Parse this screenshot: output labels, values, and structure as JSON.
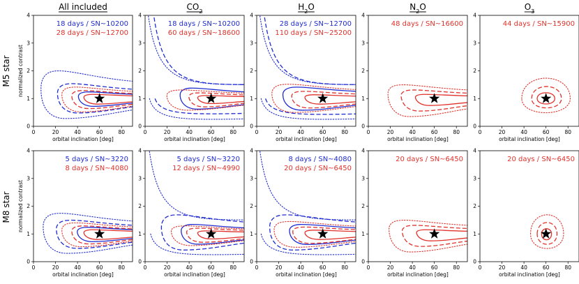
{
  "figure": {
    "row_labels": [
      "M5 star",
      "M8 star"
    ]
  },
  "chart_data": [
    {
      "type": "contour",
      "row": 0,
      "col": 0,
      "title": "All included",
      "title_html": "All included",
      "underline": true,
      "xlabel": "orbital inclination [deg]",
      "ylabel": "normalized contrast",
      "xlim": [
        0,
        90
      ],
      "ylim": [
        0,
        4
      ],
      "xticks": [
        0,
        20,
        40,
        60,
        80
      ],
      "yticks": [
        0,
        1,
        2,
        3,
        4
      ],
      "marker": {
        "x": 60,
        "y": 1
      },
      "annotations": [
        {
          "text": "18 days / SN~10200",
          "color": "#1f2ccf"
        },
        {
          "text": "28 days / SN~12700",
          "color": "#e0322b"
        }
      ],
      "contours": [
        {
          "color": "#1f2ccf",
          "style": "dotted",
          "x_left": 7,
          "y_top": 2.45,
          "y_bottom": 0.28
        },
        {
          "color": "#1f2ccf",
          "style": "dashed",
          "x_left": 22,
          "y_top": 1.78,
          "y_bottom": 0.48
        },
        {
          "color": "#1f2ccf",
          "style": "solid",
          "x_left": 41,
          "y_top": 1.35,
          "y_bottom": 0.72
        },
        {
          "color": "#e0322b",
          "style": "dotted",
          "x_left": 26,
          "y_top": 1.6,
          "y_bottom": 0.52
        },
        {
          "color": "#e0322b",
          "style": "dashed",
          "x_left": 35,
          "y_top": 1.42,
          "y_bottom": 0.64
        },
        {
          "color": "#e0322b",
          "style": "solid",
          "x_left": 46,
          "y_top": 1.22,
          "y_bottom": 0.8
        }
      ]
    },
    {
      "type": "contour",
      "row": 0,
      "col": 1,
      "title": "CO2",
      "title_html": "CO<tspan baseline-shift='sub' font-size='8'>2</tspan>",
      "underline": true,
      "xlabel": "orbital inclination [deg]",
      "ylabel": "",
      "xlim": [
        0,
        90
      ],
      "ylim": [
        0,
        4
      ],
      "xticks": [
        0,
        20,
        40,
        60,
        80
      ],
      "yticks": [
        0,
        1,
        2,
        3,
        4
      ],
      "marker": {
        "x": 60,
        "y": 1
      },
      "annotations": [
        {
          "text": "18 days / SN~10200",
          "color": "#1f2ccf"
        },
        {
          "text": "60 days / SN~18600",
          "color": "#e0322b"
        }
      ],
      "contours": [
        {
          "color": "#1f2ccf",
          "style": "dotted",
          "x_left": 1,
          "y_top": 4.6,
          "y_bottom": 0.22,
          "shape": "open"
        },
        {
          "color": "#1f2ccf",
          "style": "dashed",
          "x_left": 6,
          "y_top": 4.6,
          "y_bottom": 0.42,
          "shape": "open"
        },
        {
          "color": "#1f2ccf",
          "style": "solid",
          "x_left": 32,
          "y_top": 1.55,
          "y_bottom": 0.62
        },
        {
          "color": "#e0322b",
          "style": "dotted",
          "x_left": 20,
          "y_top": 1.45,
          "y_bottom": 0.58
        },
        {
          "color": "#e0322b",
          "style": "dashed",
          "x_left": 40,
          "y_top": 1.3,
          "y_bottom": 0.7
        },
        {
          "color": "#e0322b",
          "style": "solid",
          "x_left": 48,
          "y_top": 1.16,
          "y_bottom": 0.82
        }
      ]
    },
    {
      "type": "contour",
      "row": 0,
      "col": 2,
      "title": "H2O",
      "title_html": "H<tspan baseline-shift='sub' font-size='8'>2</tspan>O",
      "underline": true,
      "xlabel": "orbital inclination [deg]",
      "ylabel": "",
      "xlim": [
        0,
        90
      ],
      "ylim": [
        0,
        4
      ],
      "xticks": [
        0,
        20,
        40,
        60,
        80
      ],
      "yticks": [
        0,
        1,
        2,
        3,
        4
      ],
      "marker": {
        "x": 60,
        "y": 1
      },
      "annotations": [
        {
          "text": "28 days / SN~12700",
          "color": "#1f2ccf"
        },
        {
          "text": "110 days / SN~25200",
          "color": "#e0322b"
        }
      ],
      "contours": [
        {
          "color": "#1f2ccf",
          "style": "dotted",
          "x_left": 1,
          "y_top": 4.6,
          "y_bottom": 0.22,
          "shape": "open"
        },
        {
          "color": "#1f2ccf",
          "style": "dashed",
          "x_left": 5,
          "y_top": 4.6,
          "y_bottom": 0.4,
          "shape": "open"
        },
        {
          "color": "#1f2ccf",
          "style": "solid",
          "x_left": 24,
          "y_top": 1.6,
          "y_bottom": 0.58
        },
        {
          "color": "#e0322b",
          "style": "dotted",
          "x_left": 14,
          "y_top": 1.75,
          "y_bottom": 0.5
        },
        {
          "color": "#e0322b",
          "style": "dashed",
          "x_left": 32,
          "y_top": 1.38,
          "y_bottom": 0.66
        },
        {
          "color": "#e0322b",
          "style": "solid",
          "x_left": 44,
          "y_top": 1.2,
          "y_bottom": 0.8
        }
      ]
    },
    {
      "type": "contour",
      "row": 0,
      "col": 3,
      "title": "N2O",
      "title_html": "N<tspan baseline-shift='sub' font-size='8'>2</tspan>O",
      "underline": true,
      "xlabel": "orbital inclination [deg]",
      "ylabel": "",
      "xlim": [
        0,
        90
      ],
      "ylim": [
        0,
        4
      ],
      "xticks": [
        0,
        20,
        40,
        60,
        80
      ],
      "yticks": [
        0,
        1,
        2,
        3,
        4
      ],
      "marker": {
        "x": 60,
        "y": 1
      },
      "annotations": [
        {
          "text": "48 days / SN~16600",
          "color": "#e0322b"
        }
      ],
      "contours": [
        {
          "color": "#e0322b",
          "style": "dotted",
          "x_left": 18,
          "y_top": 1.72,
          "y_bottom": 0.35
        },
        {
          "color": "#e0322b",
          "style": "dashed",
          "x_left": 30,
          "y_top": 1.45,
          "y_bottom": 0.55
        },
        {
          "color": "#e0322b",
          "style": "solid",
          "x_left": 43,
          "y_top": 1.22,
          "y_bottom": 0.75
        }
      ]
    },
    {
      "type": "contour",
      "row": 0,
      "col": 4,
      "title": "O3",
      "title_html": "O<tspan baseline-shift='sub' font-size='8'>3</tspan>",
      "underline": true,
      "xlabel": "orbital inclination [deg]",
      "ylabel": "",
      "xlim": [
        0,
        90
      ],
      "ylim": [
        0,
        4
      ],
      "xticks": [
        0,
        20,
        40,
        60,
        80
      ],
      "yticks": [
        0,
        1,
        2,
        3,
        4
      ],
      "marker": {
        "x": 60,
        "y": 1
      },
      "annotations": [
        {
          "text": "44 days / SN~15900",
          "color": "#e0322b"
        }
      ],
      "contours": [
        {
          "color": "#e0322b",
          "style": "dotted",
          "x_left": 38,
          "y_top": 1.98,
          "y_bottom": 0.32,
          "shape": "blob",
          "x_right": 82
        },
        {
          "color": "#e0322b",
          "style": "dashed",
          "x_left": 47,
          "y_top": 1.58,
          "y_bottom": 0.55,
          "shape": "blob",
          "x_right": 74
        },
        {
          "color": "#e0322b",
          "style": "solid",
          "x_left": 52,
          "y_top": 1.28,
          "y_bottom": 0.74,
          "shape": "blob",
          "x_right": 68
        }
      ]
    },
    {
      "type": "contour",
      "row": 1,
      "col": 0,
      "title": "",
      "title_html": "",
      "underline": false,
      "xlabel": "orbital inclination [deg]",
      "ylabel": "normalized contrast",
      "xlim": [
        0,
        90
      ],
      "ylim": [
        0,
        4
      ],
      "xticks": [
        0,
        20,
        40,
        60,
        80
      ],
      "yticks": [
        0,
        1,
        2,
        3,
        4
      ],
      "marker": {
        "x": 60,
        "y": 1
      },
      "annotations": [
        {
          "text": "5 days / SN~3220",
          "color": "#1f2ccf"
        },
        {
          "text": "8 days / SN~4080",
          "color": "#e0322b"
        }
      ],
      "contours": [
        {
          "color": "#1f2ccf",
          "style": "dotted",
          "x_left": 9,
          "y_top": 2.08,
          "y_bottom": 0.3
        },
        {
          "color": "#1f2ccf",
          "style": "dashed",
          "x_left": 21,
          "y_top": 1.72,
          "y_bottom": 0.48
        },
        {
          "color": "#1f2ccf",
          "style": "solid",
          "x_left": 40,
          "y_top": 1.35,
          "y_bottom": 0.72
        },
        {
          "color": "#e0322b",
          "style": "dotted",
          "x_left": 26,
          "y_top": 1.58,
          "y_bottom": 0.54
        },
        {
          "color": "#e0322b",
          "style": "dashed",
          "x_left": 35,
          "y_top": 1.42,
          "y_bottom": 0.64
        },
        {
          "color": "#e0322b",
          "style": "solid",
          "x_left": 46,
          "y_top": 1.22,
          "y_bottom": 0.8
        }
      ]
    },
    {
      "type": "contour",
      "row": 1,
      "col": 1,
      "title": "",
      "title_html": "",
      "underline": false,
      "xlabel": "orbital inclination [deg]",
      "ylabel": "",
      "xlim": [
        0,
        90
      ],
      "ylim": [
        0,
        4
      ],
      "xticks": [
        0,
        20,
        40,
        60,
        80
      ],
      "yticks": [
        0,
        1,
        2,
        3,
        4
      ],
      "marker": {
        "x": 60,
        "y": 1
      },
      "annotations": [
        {
          "text": "5 days / SN~3220",
          "color": "#1f2ccf"
        },
        {
          "text": "12 days / SN~4990",
          "color": "#e0322b"
        }
      ],
      "contours": [
        {
          "color": "#1f2ccf",
          "style": "dotted",
          "x_left": 2,
          "y_top": 4.6,
          "y_bottom": 0.22,
          "shape": "open"
        },
        {
          "color": "#1f2ccf",
          "style": "dashed",
          "x_left": 15,
          "y_top": 2.0,
          "y_bottom": 0.42
        },
        {
          "color": "#1f2ccf",
          "style": "solid",
          "x_left": 33,
          "y_top": 1.5,
          "y_bottom": 0.63
        },
        {
          "color": "#e0322b",
          "style": "dotted",
          "x_left": 24,
          "y_top": 1.42,
          "y_bottom": 0.58
        },
        {
          "color": "#e0322b",
          "style": "dashed",
          "x_left": 38,
          "y_top": 1.3,
          "y_bottom": 0.7
        },
        {
          "color": "#e0322b",
          "style": "solid",
          "x_left": 48,
          "y_top": 1.16,
          "y_bottom": 0.82
        }
      ]
    },
    {
      "type": "contour",
      "row": 1,
      "col": 2,
      "title": "",
      "title_html": "",
      "underline": false,
      "xlabel": "orbital inclination [deg]",
      "ylabel": "",
      "xlim": [
        0,
        90
      ],
      "ylim": [
        0,
        4
      ],
      "xticks": [
        0,
        20,
        40,
        60,
        80
      ],
      "yticks": [
        0,
        1,
        2,
        3,
        4
      ],
      "marker": {
        "x": 60,
        "y": 1
      },
      "annotations": [
        {
          "text": "8 days / SN~4080",
          "color": "#1f2ccf"
        },
        {
          "text": "20 days / SN~6450",
          "color": "#e0322b"
        }
      ],
      "contours": [
        {
          "color": "#1f2ccf",
          "style": "dotted",
          "x_left": 1,
          "y_top": 4.6,
          "y_bottom": 0.22,
          "shape": "open"
        },
        {
          "color": "#1f2ccf",
          "style": "dashed",
          "x_left": 12,
          "y_top": 2.0,
          "y_bottom": 0.42
        },
        {
          "color": "#1f2ccf",
          "style": "solid",
          "x_left": 30,
          "y_top": 1.5,
          "y_bottom": 0.62
        },
        {
          "color": "#e0322b",
          "style": "dotted",
          "x_left": 16,
          "y_top": 1.65,
          "y_bottom": 0.52
        },
        {
          "color": "#e0322b",
          "style": "dashed",
          "x_left": 33,
          "y_top": 1.36,
          "y_bottom": 0.66
        },
        {
          "color": "#e0322b",
          "style": "solid",
          "x_left": 44,
          "y_top": 1.2,
          "y_bottom": 0.8
        }
      ]
    },
    {
      "type": "contour",
      "row": 1,
      "col": 3,
      "title": "",
      "title_html": "",
      "underline": false,
      "xlabel": "orbital inclination [deg]",
      "ylabel": "",
      "xlim": [
        0,
        90
      ],
      "ylim": [
        0,
        4
      ],
      "xticks": [
        0,
        20,
        40,
        60,
        80
      ],
      "yticks": [
        0,
        1,
        2,
        3,
        4
      ],
      "marker": {
        "x": 60,
        "y": 1
      },
      "annotations": [
        {
          "text": "20 days / SN~6450",
          "color": "#e0322b"
        }
      ],
      "contours": [
        {
          "color": "#e0322b",
          "style": "dotted",
          "x_left": 19,
          "y_top": 1.72,
          "y_bottom": 0.35
        },
        {
          "color": "#e0322b",
          "style": "dashed",
          "x_left": 31,
          "y_top": 1.45,
          "y_bottom": 0.55
        },
        {
          "color": "#e0322b",
          "style": "solid",
          "x_left": 44,
          "y_top": 1.22,
          "y_bottom": 0.75
        }
      ]
    },
    {
      "type": "contour",
      "row": 1,
      "col": 4,
      "title": "",
      "title_html": "",
      "underline": false,
      "xlabel": "orbital inclination [deg]",
      "ylabel": "",
      "xlim": [
        0,
        90
      ],
      "ylim": [
        0,
        4
      ],
      "xticks": [
        0,
        20,
        40,
        60,
        80
      ],
      "yticks": [
        0,
        1,
        2,
        3,
        4
      ],
      "marker": {
        "x": 60,
        "y": 1
      },
      "annotations": [
        {
          "text": "20 days / SN~6450",
          "color": "#e0322b"
        }
      ],
      "contours": [
        {
          "color": "#e0322b",
          "style": "dotted",
          "x_left": 46,
          "y_top": 1.92,
          "y_bottom": 0.3,
          "shape": "blob",
          "x_right": 76
        },
        {
          "color": "#e0322b",
          "style": "dashed",
          "x_left": 52,
          "y_top": 1.55,
          "y_bottom": 0.5,
          "shape": "blob",
          "x_right": 70
        },
        {
          "color": "#e0322b",
          "style": "solid",
          "x_left": 56,
          "y_top": 1.25,
          "y_bottom": 0.72,
          "shape": "blob",
          "x_right": 65
        }
      ]
    }
  ]
}
